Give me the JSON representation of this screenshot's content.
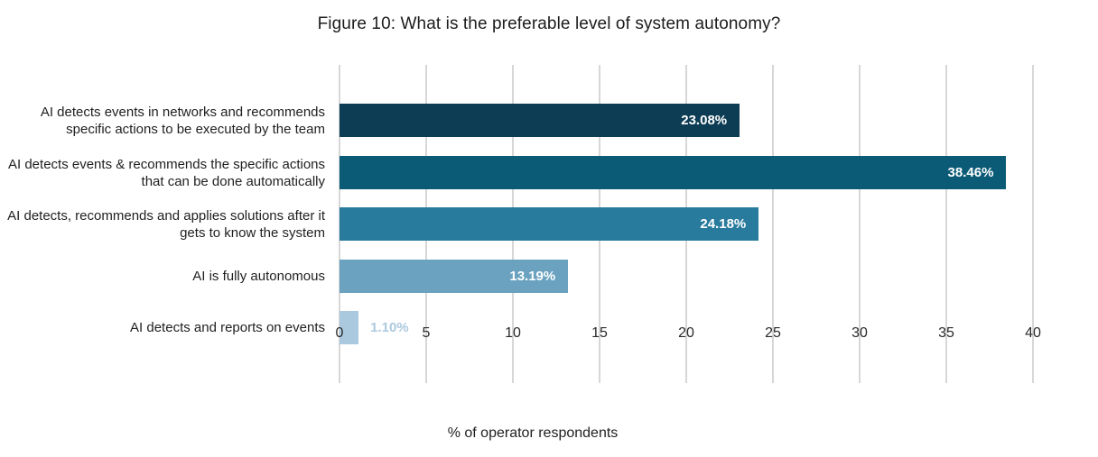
{
  "figure": {
    "title": "Figure 10: What is the preferable level of system autonomy?",
    "xlabel": "% of operator respondents"
  },
  "chart_data": {
    "type": "bar",
    "orientation": "horizontal",
    "title": "Figure 10: What is the preferable level of system autonomy?",
    "xlabel": "% of operator respondents",
    "ylabel": "",
    "xlim": [
      0,
      40
    ],
    "xticks": [
      0,
      5,
      10,
      15,
      20,
      25,
      30,
      35,
      40
    ],
    "grid": true,
    "legend": false,
    "categories": [
      "AI detects events in networks and recommends specific actions to be executed by the team",
      "AI detects events & recommends the specific actions that can be done automatically",
      "AI detects, recommends and applies solutions after it gets to know the system",
      "AI is fully autonomous",
      "AI detects and reports on events"
    ],
    "values": [
      23.08,
      38.46,
      24.18,
      13.19,
      1.1
    ],
    "value_labels": [
      "23.08%",
      "38.46%",
      "24.18%",
      "13.19%",
      "1.10%"
    ],
    "bar_colors": [
      "#0d3d55",
      "#0b5b77",
      "#297b9d",
      "#6aa2bf",
      "#abc9de"
    ],
    "colors": {
      "gridline": "#d7d7d7",
      "value_label_inside": "#ffffff",
      "value_label_outside": "#abc9de",
      "category_text": "#1f1f1f",
      "tick_text": "#2a2a2a",
      "background": "#ffffff"
    }
  }
}
